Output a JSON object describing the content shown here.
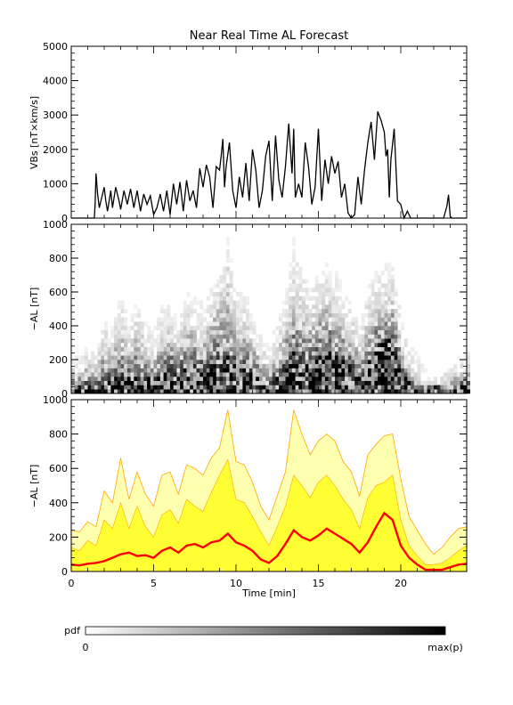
{
  "title": "Near Real Time AL Forecast",
  "colorbar": {
    "label": "pdf",
    "min_label": "0",
    "max_label": "max(p)"
  },
  "colors": {
    "density": "#000000",
    "median_line": "#ff0000",
    "band_fill": "#ffff33",
    "band_light": "#ffffb0",
    "band_edge": "#ffa500"
  },
  "chart_data": [
    {
      "type": "line",
      "panel": "top",
      "title": "Near Real Time AL Forecast",
      "ylabel": "VBs [nT×km/s]",
      "xlabel": "",
      "xlim": [
        0,
        24
      ],
      "ylim": [
        0,
        5000
      ],
      "yticks": [
        0,
        1000,
        2000,
        3000,
        4000,
        5000
      ],
      "series": [
        {
          "x": [
            0,
            0.8,
            1.0,
            1.4,
            1.45,
            1.5,
            1.6,
            1.7,
            2.0,
            2.1,
            2.2,
            2.4,
            2.5,
            2.7,
            2.9,
            3.0,
            3.2,
            3.4,
            3.6,
            3.8,
            4.0,
            4.2,
            4.4,
            4.6,
            4.8,
            5.0,
            5.2,
            5.4,
            5.6,
            5.8,
            6.0,
            6.2,
            6.4,
            6.6,
            6.8,
            7.0,
            7.2,
            7.4,
            7.6,
            7.8,
            8.0,
            8.2,
            8.4,
            8.6,
            8.8,
            9.0,
            9.1,
            9.2,
            9.3,
            9.4,
            9.6,
            9.8,
            10.0,
            10.2,
            10.4,
            10.6,
            10.8,
            11.0,
            11.2,
            11.4,
            11.6,
            11.8,
            12.0,
            12.2,
            12.4,
            12.6,
            12.8,
            13.0,
            13.2,
            13.4,
            13.5,
            13.6,
            13.8,
            14.0,
            14.2,
            14.4,
            14.6,
            14.8,
            15.0,
            15.2,
            15.4,
            15.6,
            15.8,
            16.0,
            16.2,
            16.4,
            16.6,
            16.8,
            17.0,
            17.2,
            17.4,
            17.6,
            17.8,
            18.0,
            18.2,
            18.4,
            18.6,
            18.8,
            19.0,
            19.1,
            19.2,
            19.3,
            19.4,
            19.6,
            19.8,
            20.0,
            20.2,
            20.4,
            20.6,
            20.8,
            21.0,
            22.0,
            22.6,
            22.8,
            22.9,
            23.0,
            23.1,
            23.2,
            24.0
          ],
          "y": [
            0,
            0,
            0,
            0,
            400,
            1300,
            700,
            300,
            900,
            500,
            200,
            800,
            300,
            900,
            500,
            250,
            800,
            400,
            850,
            300,
            800,
            200,
            700,
            400,
            650,
            100,
            300,
            700,
            200,
            800,
            100,
            1000,
            400,
            1050,
            200,
            1100,
            500,
            800,
            300,
            1450,
            900,
            1550,
            1200,
            300,
            1500,
            1400,
            1800,
            2300,
            900,
            1500,
            2200,
            800,
            300,
            1200,
            600,
            1600,
            500,
            2000,
            1400,
            300,
            800,
            1800,
            2250,
            500,
            2400,
            1100,
            600,
            1500,
            2750,
            1300,
            2600,
            600,
            1000,
            600,
            2200,
            1500,
            400,
            900,
            2600,
            500,
            1700,
            1000,
            1800,
            1300,
            1650,
            600,
            1000,
            150,
            0,
            100,
            1200,
            400,
            1400,
            2200,
            2800,
            1700,
            3100,
            2850,
            2500,
            1800,
            2000,
            600,
            1700,
            2600,
            500,
            400,
            0,
            200,
            0,
            0,
            0,
            0,
            0,
            350,
            680,
            50,
            0,
            0,
            0
          ]
        }
      ]
    },
    {
      "type": "heatmap",
      "panel": "middle",
      "ylabel": "−AL [nT]",
      "xlabel": "",
      "xlim": [
        0,
        24
      ],
      "ylim": [
        0,
        1000
      ],
      "yticks": [
        0,
        200,
        400,
        600,
        800,
        1000
      ],
      "colorscale": "white-to-black pdf"
    },
    {
      "type": "area",
      "panel": "bottom",
      "ylabel": "−AL [nT]",
      "xlabel": "Time [min]",
      "xlim": [
        0,
        24
      ],
      "ylim": [
        0,
        1000
      ],
      "xticks": [
        0,
        5,
        10,
        15,
        20
      ],
      "yticks": [
        0,
        200,
        400,
        600,
        800,
        1000
      ],
      "x": [
        0,
        0.5,
        1.0,
        1.5,
        2.0,
        2.5,
        3.0,
        3.5,
        4.0,
        4.5,
        5.0,
        5.5,
        6.0,
        6.5,
        7.0,
        7.5,
        8.0,
        8.5,
        9.0,
        9.5,
        10.0,
        10.5,
        11.0,
        11.5,
        12.0,
        12.5,
        13.0,
        13.5,
        14.0,
        14.5,
        15.0,
        15.5,
        16.0,
        16.5,
        17.0,
        17.5,
        18.0,
        18.5,
        19.0,
        19.5,
        20.0,
        20.5,
        21.0,
        21.5,
        22.0,
        22.5,
        23.0,
        23.5,
        24.0
      ],
      "series": [
        {
          "name": "median",
          "values": [
            40,
            35,
            45,
            50,
            60,
            80,
            100,
            110,
            90,
            95,
            80,
            120,
            140,
            110,
            150,
            160,
            140,
            170,
            180,
            220,
            170,
            150,
            120,
            70,
            50,
            90,
            160,
            240,
            200,
            180,
            210,
            250,
            220,
            190,
            160,
            110,
            170,
            260,
            340,
            300,
            150,
            80,
            40,
            10,
            10,
            10,
            25,
            40,
            45
          ]
        },
        {
          "name": "band_inner",
          "values": [
            140,
            120,
            180,
            150,
            300,
            250,
            400,
            250,
            380,
            260,
            200,
            330,
            360,
            280,
            420,
            380,
            350,
            460,
            560,
            650,
            420,
            400,
            320,
            230,
            150,
            260,
            380,
            560,
            500,
            430,
            520,
            560,
            500,
            420,
            360,
            250,
            430,
            500,
            520,
            560,
            300,
            150,
            90,
            40,
            40,
            50,
            80,
            120,
            150
          ]
        },
        {
          "name": "band_outer",
          "values": [
            240,
            230,
            290,
            260,
            470,
            400,
            660,
            420,
            580,
            450,
            380,
            560,
            580,
            450,
            620,
            600,
            560,
            660,
            720,
            940,
            640,
            620,
            520,
            380,
            300,
            440,
            580,
            940,
            800,
            680,
            760,
            800,
            760,
            640,
            580,
            440,
            680,
            740,
            790,
            800,
            540,
            320,
            240,
            160,
            100,
            140,
            200,
            250,
            260
          ]
        }
      ]
    }
  ]
}
